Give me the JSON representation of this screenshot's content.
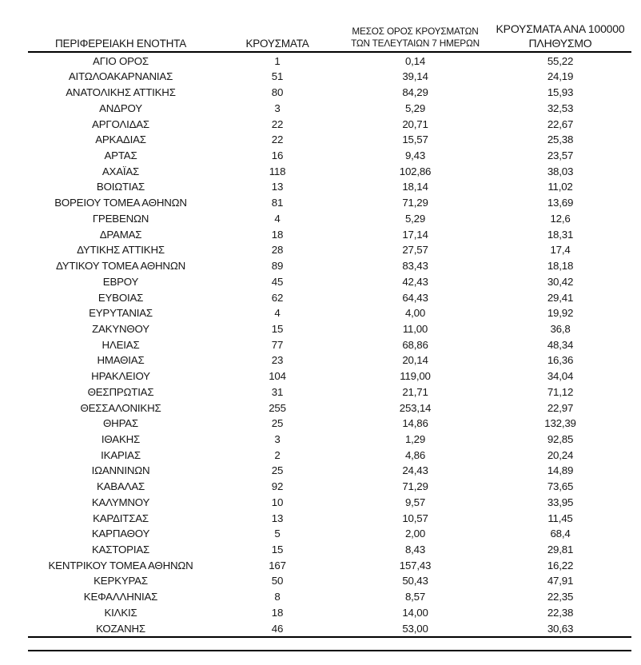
{
  "colors": {
    "background": "#ffffff",
    "text": "#161616",
    "rule": "#000000"
  },
  "table": {
    "headers": [
      "ΠΕΡΙΦΕΡΕΙΑΚΗ ΕΝΟΤΗΤΑ",
      "ΚΡΟΥΣΜΑΤΑ",
      "ΜΕΣΟΣ ΟΡΟΣ ΚΡΟΥΣΜΑΤΩΝ ΤΩΝ ΤΕΛΕΥΤΑΙΩΝ 7 ΗΜΕΡΩΝ",
      "ΚΡΟΥΣΜΑΤΑ ΑΝΑ 100000 ΠΛΗΘΥΣΜΟ"
    ],
    "rows": [
      [
        "ΑΓΙΟ ΟΡΟΣ",
        "1",
        "0,14",
        "55,22"
      ],
      [
        "ΑΙΤΩΛΟΑΚΑΡΝΑΝΙΑΣ",
        "51",
        "39,14",
        "24,19"
      ],
      [
        "ΑΝΑΤΟΛΙΚΗΣ ΑΤΤΙΚΗΣ",
        "80",
        "84,29",
        "15,93"
      ],
      [
        "ΑΝΔΡΟΥ",
        "3",
        "5,29",
        "32,53"
      ],
      [
        "ΑΡΓΟΛΙΔΑΣ",
        "22",
        "20,71",
        "22,67"
      ],
      [
        "ΑΡΚΑΔΙΑΣ",
        "22",
        "15,57",
        "25,38"
      ],
      [
        "ΑΡΤΑΣ",
        "16",
        "9,43",
        "23,57"
      ],
      [
        "ΑΧΑΪΑΣ",
        "118",
        "102,86",
        "38,03"
      ],
      [
        "ΒΟΙΩΤΙΑΣ",
        "13",
        "18,14",
        "11,02"
      ],
      [
        "ΒΟΡΕΙΟΥ ΤΟΜΕΑ ΑΘΗΝΩΝ",
        "81",
        "71,29",
        "13,69"
      ],
      [
        "ΓΡΕΒΕΝΩΝ",
        "4",
        "5,29",
        "12,6"
      ],
      [
        "ΔΡΑΜΑΣ",
        "18",
        "17,14",
        "18,31"
      ],
      [
        "ΔΥΤΙΚΗΣ ΑΤΤΙΚΗΣ",
        "28",
        "27,57",
        "17,4"
      ],
      [
        "ΔΥΤΙΚΟΥ ΤΟΜΕΑ ΑΘΗΝΩΝ",
        "89",
        "83,43",
        "18,18"
      ],
      [
        "ΕΒΡΟΥ",
        "45",
        "42,43",
        "30,42"
      ],
      [
        "ΕΥΒΟΙΑΣ",
        "62",
        "64,43",
        "29,41"
      ],
      [
        "ΕΥΡΥΤΑΝΙΑΣ",
        "4",
        "4,00",
        "19,92"
      ],
      [
        "ΖΑΚΥΝΘΟΥ",
        "15",
        "11,00",
        "36,8"
      ],
      [
        "ΗΛΕΙΑΣ",
        "77",
        "68,86",
        "48,34"
      ],
      [
        "ΗΜΑΘΙΑΣ",
        "23",
        "20,14",
        "16,36"
      ],
      [
        "ΗΡΑΚΛΕΙΟΥ",
        "104",
        "119,00",
        "34,04"
      ],
      [
        "ΘΕΣΠΡΩΤΙΑΣ",
        "31",
        "21,71",
        "71,12"
      ],
      [
        "ΘΕΣΣΑΛΟΝΙΚΗΣ",
        "255",
        "253,14",
        "22,97"
      ],
      [
        "ΘΗΡΑΣ",
        "25",
        "14,86",
        "132,39"
      ],
      [
        "ΙΘΑΚΗΣ",
        "3",
        "1,29",
        "92,85"
      ],
      [
        "ΙΚΑΡΙΑΣ",
        "2",
        "4,86",
        "20,24"
      ],
      [
        "ΙΩΑΝΝΙΝΩΝ",
        "25",
        "24,43",
        "14,89"
      ],
      [
        "ΚΑΒΑΛΑΣ",
        "92",
        "71,29",
        "73,65"
      ],
      [
        "ΚΑΛΥΜΝΟΥ",
        "10",
        "9,57",
        "33,95"
      ],
      [
        "ΚΑΡΔΙΤΣΑΣ",
        "13",
        "10,57",
        "11,45"
      ],
      [
        "ΚΑΡΠΑΘΟΥ",
        "5",
        "2,00",
        "68,4"
      ],
      [
        "ΚΑΣΤΟΡΙΑΣ",
        "15",
        "8,43",
        "29,81"
      ],
      [
        "ΚΕΝΤΡΙΚΟΥ ΤΟΜΕΑ ΑΘΗΝΩΝ",
        "167",
        "157,43",
        "16,22"
      ],
      [
        "ΚΕΡΚΥΡΑΣ",
        "50",
        "50,43",
        "47,91"
      ],
      [
        "ΚΕΦΑΛΛΗΝΙΑΣ",
        "8",
        "8,57",
        "22,35"
      ],
      [
        "ΚΙΛΚΙΣ",
        "18",
        "14,00",
        "22,38"
      ],
      [
        "ΚΟΖΑΝΗΣ",
        "46",
        "53,00",
        "30,63"
      ]
    ]
  }
}
